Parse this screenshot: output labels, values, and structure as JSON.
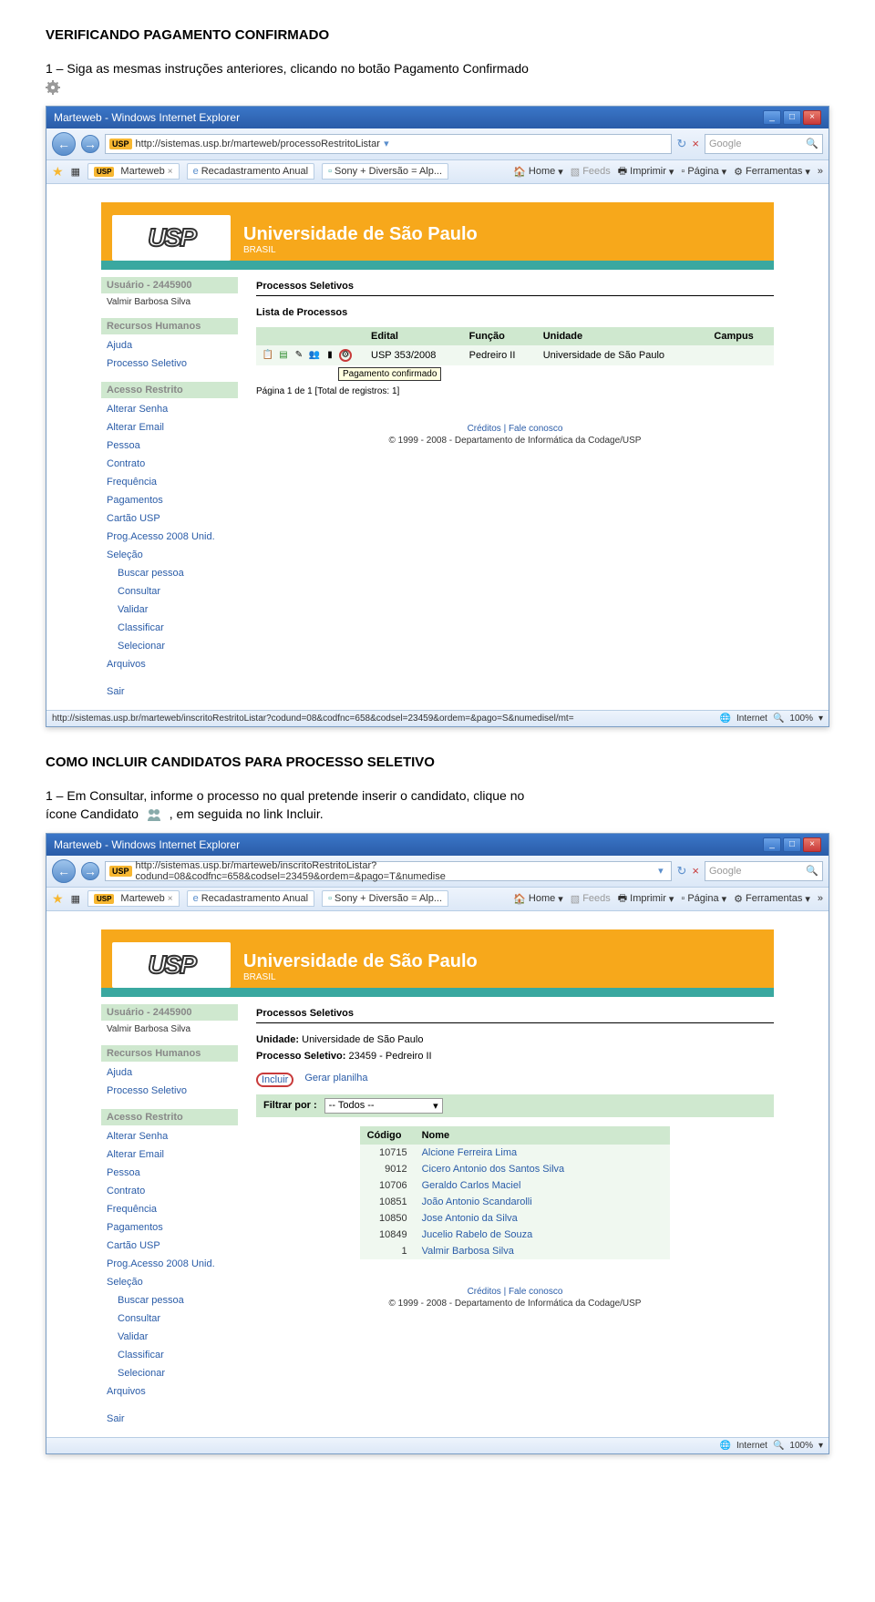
{
  "doc": {
    "title1": "VERIFICANDO PAGAMENTO CONFIRMADO",
    "instr1a": "1 – Siga as mesmas instruções anteriores, clicando no botão Pagamento Confirmado",
    "title2": "COMO INCLUIR CANDIDATOS PARA PROCESSO SELETIVO",
    "instr2a": "1 – Em Consultar, informe o processo no qual pretende inserir o candidato, clique no",
    "instr2b_pre": "ícone Candidato",
    "instr2b_post": ", em seguida no link Incluir."
  },
  "browser": {
    "title": "Marteweb - Windows Internet Explorer",
    "url1": "http://sistemas.usp.br/marteweb/processoRestritoListar",
    "url2": "http://sistemas.usp.br/marteweb/inscritoRestritoListar?codund=08&codfnc=658&codsel=23459&ordem=&pago=T&numedise",
    "search_placeholder": "Google",
    "tabs": {
      "marteweb": "Marteweb",
      "recad": "Recadastramento Anual",
      "sony": "Sony + Diversão = Alp..."
    },
    "toolbar": {
      "home": "Home",
      "feeds": "Feeds",
      "imprimir": "Imprimir",
      "pagina": "Página",
      "ferramentas": "Ferramentas"
    },
    "status": {
      "url1": "http://sistemas.usp.br/marteweb/inscritoRestritoListar?codund=08&codfnc=658&codsel=23459&ordem=&pago=S&numedisel/mt=",
      "internet": "Internet",
      "zoom": "100%"
    }
  },
  "usp": {
    "logo": "USP",
    "title": "Universidade de São Paulo",
    "sub": "BRASIL"
  },
  "sidebar": {
    "user_hdr": "Usuário - 2445900",
    "user_name": "Valmir Barbosa Silva",
    "rh_hdr": "Recursos Humanos",
    "items_rh": [
      "Ajuda",
      "Processo Seletivo"
    ],
    "ar_hdr": "Acesso Restrito",
    "items_ar": [
      "Alterar Senha",
      "Alterar Email",
      "Pessoa",
      "Contrato",
      "Frequência",
      "Pagamentos",
      "Cartão USP",
      "Prog.Acesso 2008 Unid.",
      "Seleção"
    ],
    "items_sel": [
      "Buscar pessoa",
      "Consultar",
      "Validar",
      "Classificar",
      "Selecionar"
    ],
    "items_end": [
      "Arquivos"
    ],
    "sair": "Sair"
  },
  "screen1": {
    "hdr": "Processos Seletivos",
    "label": "Lista de Processos",
    "cols": {
      "edital": "Edital",
      "funcao": "Função",
      "unidade": "Unidade",
      "campus": "Campus"
    },
    "row": {
      "edital": "USP 353/2008",
      "funcao": "Pedreiro II",
      "unidade": "Universidade de São Paulo",
      "campus": ""
    },
    "tooltip": "Pagamento confirmado",
    "pager": "Página 1 de 1   [Total de registros: 1]"
  },
  "screen2": {
    "hdr": "Processos Seletivos",
    "unid_label": "Unidade:",
    "unid_val": "Universidade de São Paulo",
    "proc_label": "Processo Seletivo:",
    "proc_val": "23459 - Pedreiro II",
    "links": {
      "incluir": "Incluir",
      "gerar": "Gerar planilha"
    },
    "filter_label": "Filtrar por :",
    "filter_val": "-- Todos --",
    "cols": {
      "codigo": "Código",
      "nome": "Nome"
    },
    "rows": [
      {
        "codigo": "10715",
        "nome": "Alcione Ferreira Lima"
      },
      {
        "codigo": "9012",
        "nome": "Cicero Antonio dos Santos Silva"
      },
      {
        "codigo": "10706",
        "nome": "Geraldo Carlos Maciel"
      },
      {
        "codigo": "10851",
        "nome": "João Antonio Scandarolli"
      },
      {
        "codigo": "10850",
        "nome": "Jose Antonio da Silva"
      },
      {
        "codigo": "10849",
        "nome": "Jucelio Rabelo de Souza"
      },
      {
        "codigo": "1",
        "nome": "Valmir Barbosa Silva"
      }
    ]
  },
  "footer": {
    "links": "Créditos | Fale conosco",
    "copy": "© 1999 - 2008 - Departamento de Informática da Codage/USP"
  },
  "colors": {
    "orange": "#f7a81b",
    "teal": "#3aa8a0",
    "green_light": "#cfe8cf",
    "green_row": "#f0f8f0",
    "blue_link": "#2a5ca8",
    "red_circle": "#c83a3a"
  }
}
